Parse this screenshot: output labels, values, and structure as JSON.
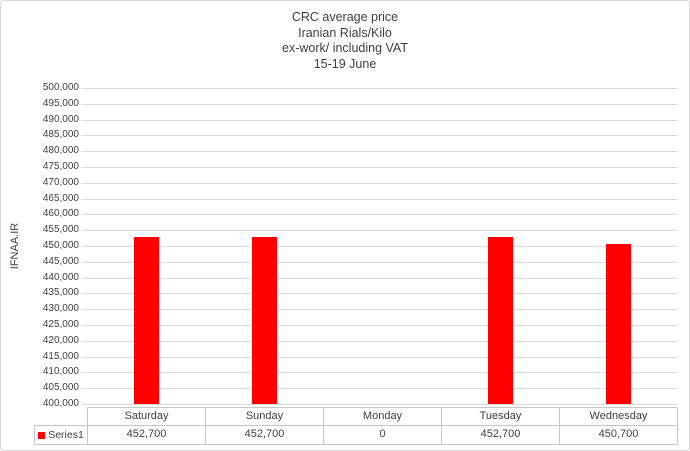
{
  "chart_title": {
    "lines": [
      "CRC average price",
      "Iranian Rials/Kilo",
      "ex-work/ including VAT",
      "15-19 June"
    ]
  },
  "y_axis": {
    "title": "IFNAA.IR",
    "min": 400000,
    "max": 500000,
    "step": 5000,
    "tick_labels": [
      "500,000",
      "495,000",
      "490,000",
      "485,000",
      "480,000",
      "475,000",
      "470,000",
      "465,000",
      "460,000",
      "455,000",
      "450,000",
      "445,000",
      "440,000",
      "435,000",
      "430,000",
      "425,000",
      "420,000",
      "415,000",
      "410,000",
      "405,000",
      "400,000"
    ]
  },
  "legend": {
    "series_label": "Series1"
  },
  "colors": {
    "bar": "#ff0000",
    "gridline": "#d9d9d9",
    "table_border": "#c6c6c6",
    "text": "#404040",
    "frame_border": "#d7d7d7",
    "background": "#ffffff"
  },
  "data_table": {
    "column_headers": [
      "Saturday",
      "Sunday",
      "Monday",
      "Tuesday",
      "Wednesday"
    ],
    "value_labels": [
      "452,700",
      "452,700",
      "0",
      "452,700",
      "450,700"
    ]
  },
  "chart_data": {
    "type": "bar",
    "categories": [
      "Saturday",
      "Sunday",
      "Monday",
      "Tuesday",
      "Wednesday"
    ],
    "series": [
      {
        "name": "Series1",
        "values": [
          452700,
          452700,
          0,
          452700,
          450700
        ]
      }
    ],
    "title": "CRC average price Iranian Rials/Kilo ex-work/ including VAT 15-19 June",
    "xlabel": "",
    "ylabel": "IFNAA.IR",
    "ylim": [
      400000,
      500000
    ],
    "ytick_step": 5000,
    "grid": true,
    "legend_position": "data-table-left",
    "bar_color": "#ff0000"
  }
}
